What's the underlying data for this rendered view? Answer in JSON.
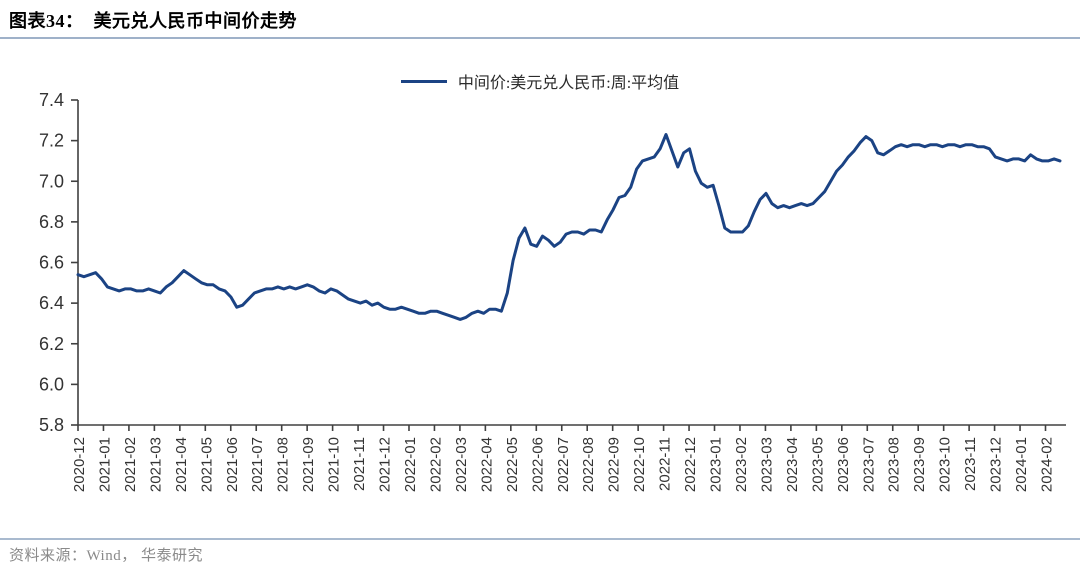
{
  "figure": {
    "source_note": "资料来源：Wind， 华泰研究"
  },
  "chart_data": {
    "type": "line",
    "title": "图表34：  美元兑人民币中间价走势",
    "xlabel": "",
    "ylabel": "",
    "ylim": [
      5.8,
      7.4
    ],
    "grid": false,
    "legend_position": "top-center",
    "y_ticks": [
      "7.4",
      "7.2",
      "7.0",
      "6.8",
      "6.6",
      "6.4",
      "6.2",
      "6.0",
      "5.8"
    ],
    "x_tick_labels": [
      "2020-12",
      "2021-01",
      "2021-02",
      "2021-03",
      "2021-04",
      "2021-05",
      "2021-06",
      "2021-07",
      "2021-08",
      "2021-09",
      "2021-10",
      "2021-11",
      "2021-12",
      "2022-01",
      "2022-02",
      "2022-03",
      "2022-04",
      "2022-05",
      "2022-06",
      "2022-07",
      "2022-08",
      "2022-09",
      "2022-10",
      "2022-11",
      "2022-12",
      "2023-01",
      "2023-02",
      "2023-03",
      "2023-04",
      "2023-05",
      "2023-06",
      "2023-07",
      "2023-08",
      "2023-09",
      "2023-10",
      "2023-11",
      "2023-12",
      "2024-01",
      "2024-02"
    ],
    "series": [
      {
        "name": "中间价:美元兑人民币:周:平均值",
        "frequency": "weekly",
        "values": [
          6.54,
          6.53,
          6.54,
          6.55,
          6.52,
          6.48,
          6.47,
          6.46,
          6.47,
          6.47,
          6.46,
          6.46,
          6.47,
          6.46,
          6.45,
          6.48,
          6.5,
          6.53,
          6.56,
          6.54,
          6.52,
          6.5,
          6.49,
          6.49,
          6.47,
          6.46,
          6.43,
          6.38,
          6.39,
          6.42,
          6.45,
          6.46,
          6.47,
          6.47,
          6.48,
          6.47,
          6.48,
          6.47,
          6.48,
          6.49,
          6.48,
          6.46,
          6.45,
          6.47,
          6.46,
          6.44,
          6.42,
          6.41,
          6.4,
          6.41,
          6.39,
          6.4,
          6.38,
          6.37,
          6.37,
          6.38,
          6.37,
          6.36,
          6.35,
          6.35,
          6.36,
          6.36,
          6.35,
          6.34,
          6.33,
          6.32,
          6.33,
          6.35,
          6.36,
          6.35,
          6.37,
          6.37,
          6.36,
          6.45,
          6.61,
          6.72,
          6.77,
          6.69,
          6.68,
          6.73,
          6.71,
          6.68,
          6.7,
          6.74,
          6.75,
          6.75,
          6.74,
          6.76,
          6.76,
          6.75,
          6.81,
          6.86,
          6.92,
          6.93,
          6.97,
          7.06,
          7.1,
          7.11,
          7.12,
          7.16,
          7.23,
          7.15,
          7.07,
          7.14,
          7.16,
          7.05,
          6.99,
          6.97,
          6.98,
          6.88,
          6.77,
          6.75,
          6.75,
          6.75,
          6.78,
          6.85,
          6.91,
          6.94,
          6.89,
          6.87,
          6.88,
          6.87,
          6.88,
          6.89,
          6.88,
          6.89,
          6.92,
          6.95,
          7.0,
          7.05,
          7.08,
          7.12,
          7.15,
          7.19,
          7.22,
          7.2,
          7.14,
          7.13,
          7.15,
          7.17,
          7.18,
          7.17,
          7.18,
          7.18,
          7.17,
          7.18,
          7.18,
          7.17,
          7.18,
          7.18,
          7.17,
          7.18,
          7.18,
          7.17,
          7.17,
          7.16,
          7.12,
          7.11,
          7.1,
          7.11,
          7.11,
          7.1,
          7.13,
          7.11,
          7.1,
          7.1,
          7.11,
          7.1
        ]
      }
    ],
    "legend": [
      "中间价:美元兑人民币:周:平均值"
    ],
    "colors": {
      "line": "#1b4384",
      "axis": "#404040",
      "tick_text": "#333333",
      "title_text": "#000000",
      "divider": "#9fb1c9",
      "source_text": "#8a8a8a"
    }
  }
}
